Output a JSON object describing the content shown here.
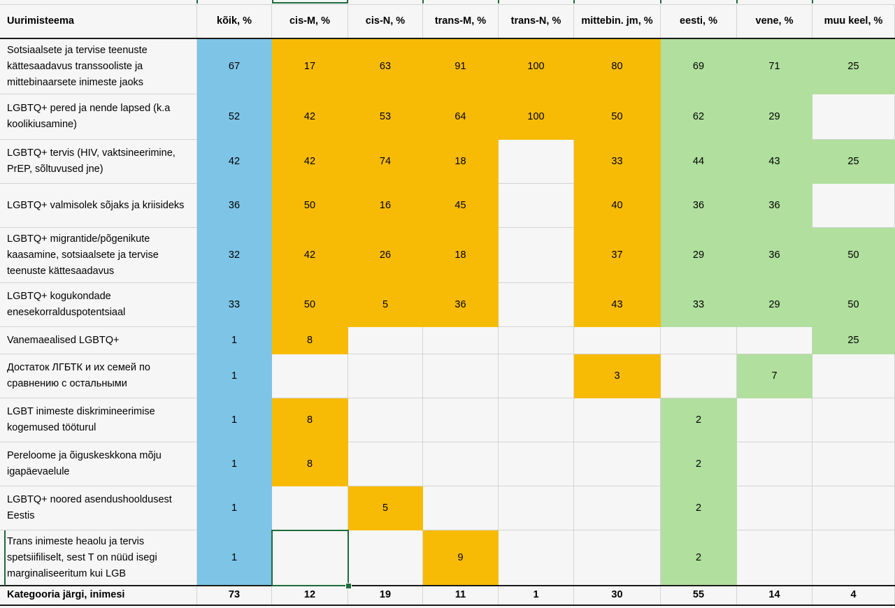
{
  "headers": [
    "Uurimisteema",
    "kõik, %",
    "cis-M, %",
    "cis-N, %",
    "trans-M, %",
    "trans-N, %",
    "mittebin. jm, %",
    "eesti, %",
    "vene, %",
    "muu keel, %"
  ],
  "rows": [
    {
      "label": "Sotsiaalsete ja tervise teenuste kättesaadavus transsooliste ja mittebinaarsete inimeste jaoks",
      "values": [
        "67",
        "17",
        "63",
        "91",
        "100",
        "80",
        "69",
        "71",
        "25"
      ]
    },
    {
      "label": "LGBTQ+ pered ja nende lapsed (k.a koolikiusamine)",
      "values": [
        "52",
        "42",
        "53",
        "64",
        "100",
        "50",
        "62",
        "29",
        ""
      ]
    },
    {
      "label": "LGBTQ+ tervis (HIV, vaktsineerimine, PrEP, sõltuvused jne)",
      "values": [
        "42",
        "42",
        "74",
        "18",
        "",
        "33",
        "44",
        "43",
        "25"
      ]
    },
    {
      "label": "LGBTQ+ valmisolek sõjaks ja kriisideks",
      "values": [
        "36",
        "50",
        "16",
        "45",
        "",
        "40",
        "36",
        "36",
        ""
      ]
    },
    {
      "label": "LGBTQ+ migrantide/põgenikute kaasamine, sotsiaalsete ja tervise teenuste kättesaadavus",
      "values": [
        "32",
        "42",
        "26",
        "18",
        "",
        "37",
        "29",
        "36",
        "50"
      ]
    },
    {
      "label": "LGBTQ+ kogukondade enesekorralduspotentsiaal",
      "values": [
        "33",
        "50",
        "5",
        "36",
        "",
        "43",
        "33",
        "29",
        "50"
      ]
    },
    {
      "label": "Vanemaealised LGBTQ+",
      "values": [
        "1",
        "8",
        "",
        "",
        "",
        "",
        "",
        "",
        "25"
      ]
    },
    {
      "label": "Достаток ЛГБТК и их семей по сравнению с остальными",
      "values": [
        "1",
        "",
        "",
        "",
        "",
        "3",
        "",
        "7",
        ""
      ]
    },
    {
      "label": "LGBT inimeste diskrimineerimise kogemused tööturul",
      "values": [
        "1",
        "8",
        "",
        "",
        "",
        "",
        "2",
        "",
        ""
      ]
    },
    {
      "label": "Pereloome ja õiguskeskkona mõju igapäevaelule",
      "values": [
        "1",
        "8",
        "",
        "",
        "",
        "",
        "2",
        "",
        ""
      ]
    },
    {
      "label": "LGBTQ+ noored asendushooldusest Eestis",
      "values": [
        "1",
        "",
        "5",
        "",
        "",
        "",
        "2",
        "",
        ""
      ]
    },
    {
      "label": "Trans inimeste heaolu ja tervis spetsiifiliselt, sest T on nüüd isegi marginaliseeritum kui LGB",
      "values": [
        "1",
        "",
        "",
        "9",
        "",
        "",
        "2",
        "",
        ""
      ]
    }
  ],
  "totals": {
    "label": "Kategooria järgi, inimesi",
    "values": [
      "73",
      "12",
      "19",
      "11",
      "1",
      "30",
      "55",
      "14",
      "4"
    ]
  },
  "colors": {
    "blue": "#7ec4e6",
    "orange": "#f7bb05",
    "green": "#b0df9e",
    "empty": "#f6f6f6",
    "selection": "#1e6b3a"
  },
  "fill_map": [
    [
      "blue",
      "orange",
      "orange",
      "orange",
      "orange",
      "orange",
      "green",
      "green",
      "green"
    ],
    [
      "blue",
      "orange",
      "orange",
      "orange",
      "orange",
      "orange",
      "green",
      "green",
      "empty"
    ],
    [
      "blue",
      "orange",
      "orange",
      "orange",
      "empty",
      "orange",
      "green",
      "green",
      "green"
    ],
    [
      "blue",
      "orange",
      "orange",
      "orange",
      "empty",
      "orange",
      "green",
      "green",
      "empty"
    ],
    [
      "blue",
      "orange",
      "orange",
      "orange",
      "empty",
      "orange",
      "green",
      "green",
      "green"
    ],
    [
      "blue",
      "orange",
      "orange",
      "orange",
      "empty",
      "orange",
      "green",
      "green",
      "green"
    ],
    [
      "blue",
      "orange",
      "empty",
      "empty",
      "empty",
      "empty",
      "empty",
      "empty",
      "green"
    ],
    [
      "blue",
      "empty",
      "empty",
      "empty",
      "empty",
      "orange",
      "empty",
      "green",
      "empty"
    ],
    [
      "blue",
      "orange",
      "empty",
      "empty",
      "empty",
      "empty",
      "green",
      "empty",
      "empty"
    ],
    [
      "blue",
      "orange",
      "empty",
      "empty",
      "empty",
      "empty",
      "green",
      "empty",
      "empty"
    ],
    [
      "blue",
      "empty",
      "orange",
      "empty",
      "empty",
      "empty",
      "green",
      "empty",
      "empty"
    ],
    [
      "blue",
      "empty",
      "empty",
      "orange",
      "empty",
      "empty",
      "green",
      "empty",
      "empty"
    ]
  ]
}
